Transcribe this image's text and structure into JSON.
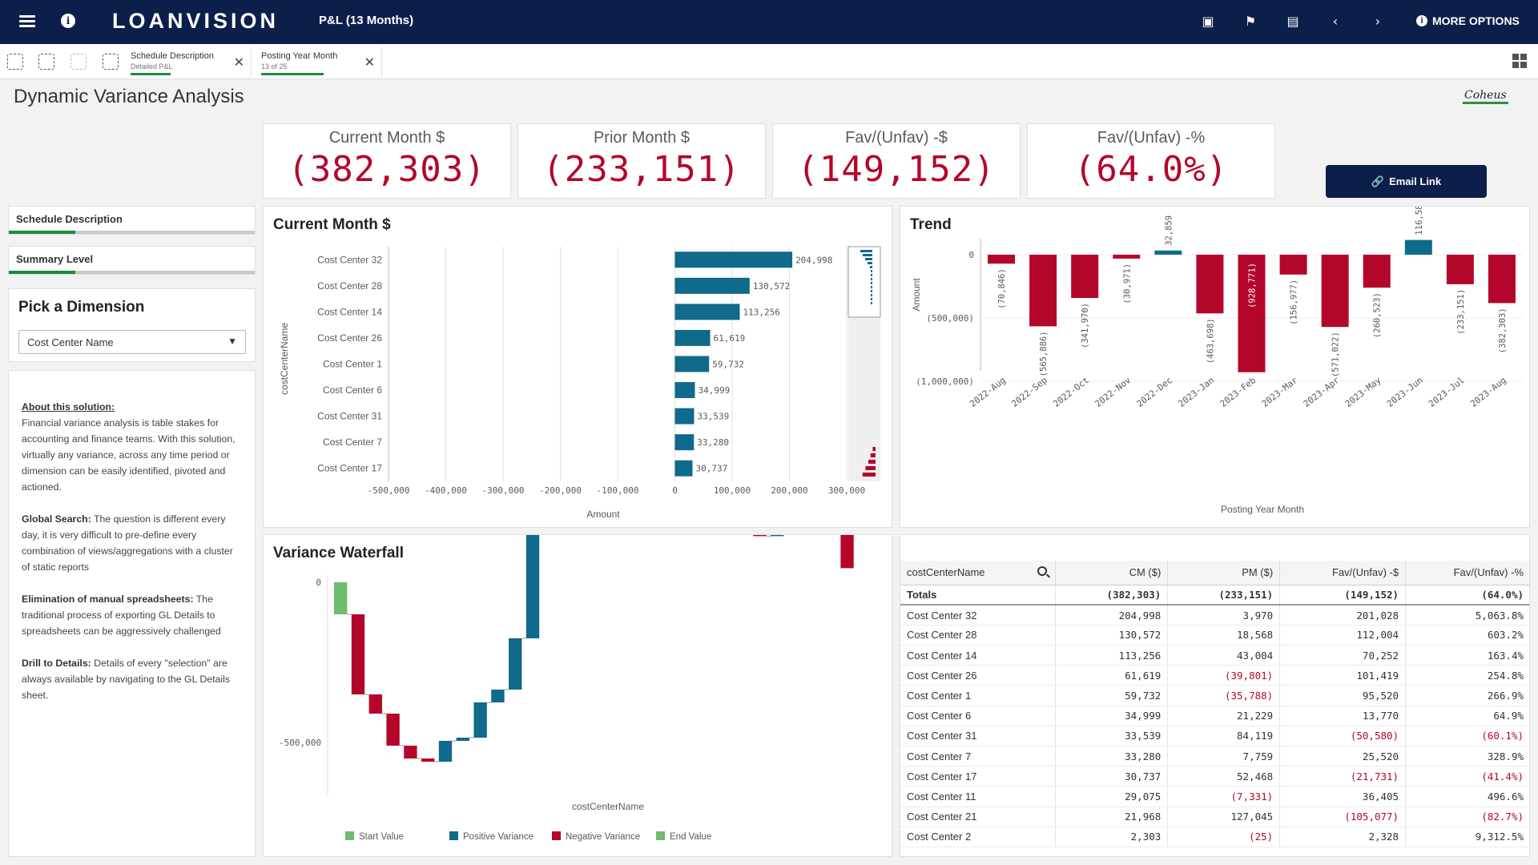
{
  "app": {
    "logo_a": "LO",
    "logo_b": "ANVISION",
    "sheet_title": "P&L (13 Months)",
    "more_options": "MORE OPTIONS"
  },
  "selections": [
    {
      "field": "Schedule Description",
      "value": "Detailed P&L"
    },
    {
      "field": "Posting Year Month",
      "value": "13 of 25"
    }
  ],
  "page_title": "Dynamic Variance Analysis",
  "brand": "Coheus",
  "kpis": [
    {
      "label": "Current Month $",
      "value": "(382,303)"
    },
    {
      "label": "Prior Month $",
      "value": "(233,151)"
    },
    {
      "label": "Fav/(Unfav) -$",
      "value": "(149,152)"
    },
    {
      "label": "Fav/(Unfav) -%",
      "value": "(64.0%)"
    }
  ],
  "email_button": "Email Link",
  "filters": [
    {
      "label": "Schedule Description",
      "fill": 0.27
    },
    {
      "label": "Summary Level",
      "fill": 0.27
    }
  ],
  "dimension": {
    "title": "Pick a Dimension",
    "selected": "Cost Center Name"
  },
  "about": {
    "h1": "About this solution:",
    "t1": "Financial variance analysis is table stakes for accounting and finance teams. With this solution, virtually any variance, across any time period or dimension can be easily identified, pivoted and actioned.",
    "h2": "Global Search:",
    "t2": " The question is different every day, it is very difficult to pre-define every combination of views/aggregations with a cluster of static reports",
    "h3": "Elimination of manual spreadsheets:",
    "t3": " The traditional process of exporting GL Details to spreadsheets can be aggressively challenged",
    "h4": "Drill to Details:",
    "t4": " Details of every \"selection\" are always available by navigating to the GL Details sheet."
  },
  "current_month_chart": {
    "title": "Current Month $",
    "chart_data": {
      "type": "bar",
      "orientation": "horizontal",
      "ylabel": "costCenterName",
      "xlabel": "Amount",
      "categories": [
        "Cost Center 32",
        "Cost Center 28",
        "Cost Center 14",
        "Cost Center 26",
        "Cost Center 1",
        "Cost Center 6",
        "Cost Center 31",
        "Cost Center 7",
        "Cost Center 17"
      ],
      "values": [
        204998,
        130572,
        113256,
        61619,
        59732,
        34999,
        33539,
        33280,
        30737
      ],
      "value_labels": [
        "204,998",
        "130,572",
        "113,256",
        "61,619",
        "59,732",
        "34,999",
        "33,539",
        "33,280",
        "30,737"
      ],
      "xlim": [
        -500000,
        300000
      ],
      "xticks": [
        "-500,000",
        "-400,000",
        "-300,000",
        "-200,000",
        "-100,000",
        "0",
        "100,000",
        "200,000",
        "300,000"
      ],
      "bar_color": "#0f6a8b"
    }
  },
  "trend_chart": {
    "title": "Trend",
    "chart_data": {
      "type": "bar",
      "xlabel": "Posting Year Month",
      "ylabel": "Amount",
      "categories": [
        "2022-Aug",
        "2022-Sep",
        "2022-Oct",
        "2022-Nov",
        "2022-Dec",
        "2023-Jan",
        "2023-Feb",
        "2023-Mar",
        "2023-Apr",
        "2023-May",
        "2023-Jun",
        "2023-Jul",
        "2023-Aug"
      ],
      "values": [
        -70846,
        -565886,
        -341970,
        -30971,
        32859,
        -463698,
        -928771,
        -156977,
        -571022,
        -260523,
        116584,
        -233151,
        -382303
      ],
      "value_labels": [
        "(70,846)",
        "(565,886)",
        "(341,970)",
        "(30,971)",
        "32,859",
        "(463,698)",
        "(928,771)",
        "(156,977)",
        "(571,022)",
        "(260,523)",
        "116,584",
        "(233,151)",
        "(382,303)"
      ],
      "yticks": [
        "500,000",
        "0",
        "(500,000)",
        "(1,000,000)"
      ],
      "ylim": [
        -1000000,
        500000
      ],
      "neg_color": "#b4062a",
      "pos_color": "#0f6a8b"
    }
  },
  "waterfall_chart": {
    "title": "Variance Waterfall",
    "chart_data": {
      "type": "bar",
      "subtype": "waterfall",
      "xlabel": "costCenterName",
      "yticks": [
        "0",
        "-500,000"
      ],
      "start": -233151,
      "end": -382303,
      "steps": [
        -250000,
        -60000,
        -100000,
        -40000,
        -10000,
        65000,
        10000,
        110000,
        40000,
        160000,
        375000,
        2000,
        2000,
        3000,
        3000,
        3000,
        -2000,
        2000,
        35000,
        -3000,
        -6000,
        -40000,
        -15000,
        -40000,
        100000,
        70000,
        -70000,
        -15000,
        -185000
      ],
      "legend": [
        {
          "name": "Start Value",
          "color": "#6cbd6c"
        },
        {
          "name": "Positive Variance",
          "color": "#0f6a8b"
        },
        {
          "name": "Negative Variance",
          "color": "#b4062a"
        },
        {
          "name": "End Value",
          "color": "#6cbd6c"
        }
      ]
    }
  },
  "table": {
    "columns": [
      "costCenterName",
      "CM ($)",
      "PM ($)",
      "Fav/(Unfav) -$",
      "Fav/(Unfav) -%"
    ],
    "totals": [
      "Totals",
      "(382,303)",
      "(233,151)",
      "(149,152)",
      "(64.0%)"
    ],
    "rows": [
      [
        "Cost Center 32",
        "204,998",
        "3,970",
        "201,028",
        "5,063.8%"
      ],
      [
        "Cost Center 28",
        "130,572",
        "18,568",
        "112,004",
        "603.2%"
      ],
      [
        "Cost Center 14",
        "113,256",
        "43,004",
        "70,252",
        "163.4%"
      ],
      [
        "Cost Center 26",
        "61,619",
        "(39,801)",
        "101,419",
        "254.8%"
      ],
      [
        "Cost Center 1",
        "59,732",
        "(35,788)",
        "95,520",
        "266.9%"
      ],
      [
        "Cost Center 6",
        "34,999",
        "21,229",
        "13,770",
        "64.9%"
      ],
      [
        "Cost Center 31",
        "33,539",
        "84,119",
        "(50,580)",
        "(60.1%)"
      ],
      [
        "Cost Center 7",
        "33,280",
        "7,759",
        "25,520",
        "328.9%"
      ],
      [
        "Cost Center 17",
        "30,737",
        "52,468",
        "(21,731)",
        "(41.4%)"
      ],
      [
        "Cost Center 11",
        "29,075",
        "(7,331)",
        "36,405",
        "496.6%"
      ],
      [
        "Cost Center 21",
        "21,968",
        "127,045",
        "(105,077)",
        "(82.7%)"
      ],
      [
        "Cost Center 2",
        "2,303",
        "(25)",
        "2,328",
        "9,312.5%"
      ]
    ]
  }
}
